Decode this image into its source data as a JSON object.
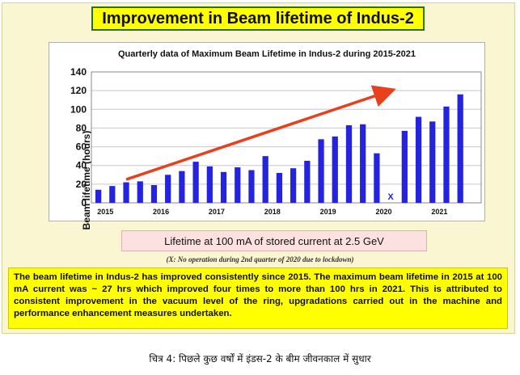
{
  "slide_title": "Improvement in Beam lifetime of Indus-2",
  "caption_box": "Lifetime at 100 mA of stored current at 2.5 GeV",
  "note": "(X: No operation during 2nd quarter of 2020 due to lockdown)",
  "paragraph": "The beam lifetime in Indus-2 has improved consistently since 2015. The maximum beam lifetime in 2015 at 100 mA current was ~ 27 hrs which improved four times to more than 100 hrs in 2021. This is attributed to consistent improvement in the vacuum level of the ring, upgradations carried out in the machine and performance enhancement measures undertaken.",
  "figure_caption": "चित्र 4: पिछले कुछ वर्षों में इंडस-2 के बीम जीवनकाल में सुधार",
  "chart_data": {
    "type": "bar",
    "title": "Quarterly data of Maximum Beam Lifetime in Indus-2 during 2015-2021",
    "ylabel": "Beam lifetime (hours)",
    "xlabel": "",
    "ylim": [
      0,
      140
    ],
    "yticks": [
      0,
      20,
      40,
      60,
      80,
      100,
      120,
      140
    ],
    "year_labels": [
      "2015",
      "2016",
      "2017",
      "2018",
      "2019",
      "2020",
      "2021"
    ],
    "year_label_slots": [
      0.5,
      4.5,
      8.5,
      12.5,
      16.5,
      20.5,
      24.5
    ],
    "slot_count": 28,
    "values": [
      14,
      18,
      22,
      23,
      19,
      30,
      34,
      44,
      39,
      33,
      38,
      35,
      50,
      32,
      37,
      45,
      68,
      71,
      83,
      84,
      53,
      null,
      77,
      92,
      87,
      103,
      116
    ],
    "missing_marker": "X",
    "missing_index": 21,
    "bar_color": "#2323e0",
    "trend_arrow": {
      "color": "#e8401c",
      "from": [
        2,
        25
      ],
      "to": [
        21,
        120
      ]
    },
    "grid": "horizontal"
  }
}
